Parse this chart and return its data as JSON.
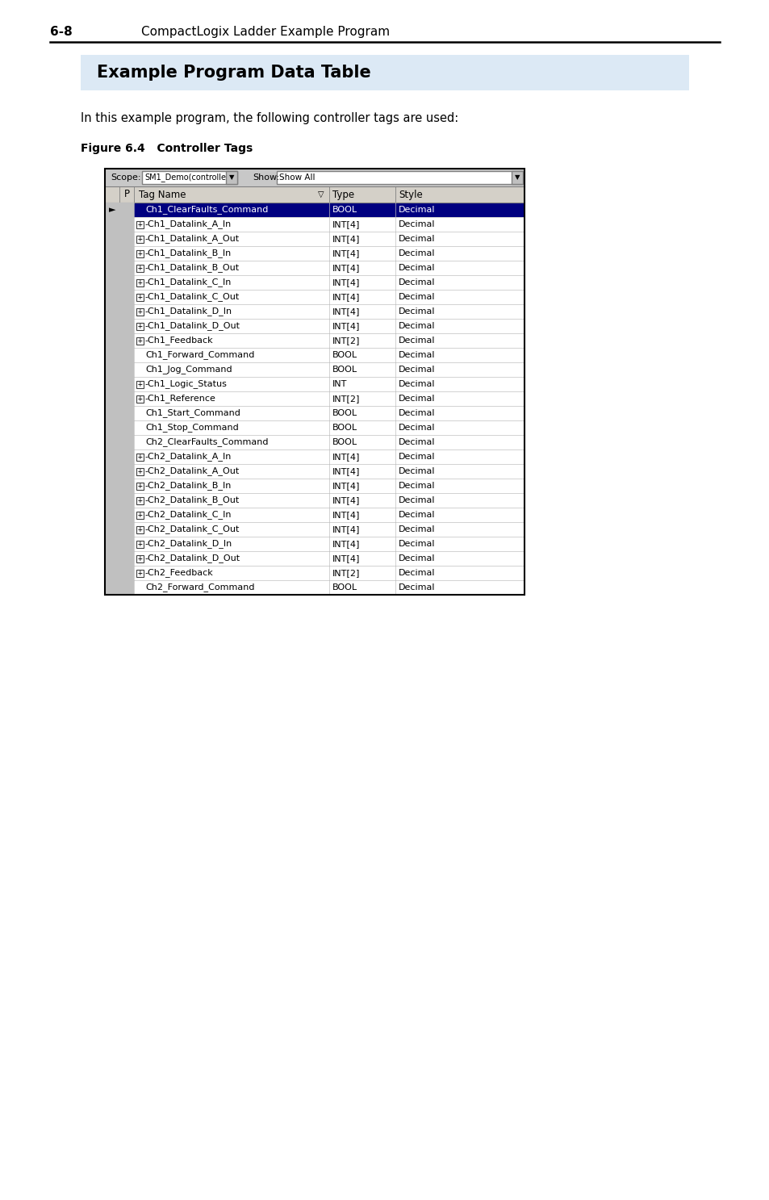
{
  "page_header_number": "6-8",
  "page_header_text": "CompactLogix Ladder Example Program",
  "section_title": "Example Program Data Table",
  "section_title_bg": "#dce9f5",
  "body_text": "In this example program, the following controller tags are used:",
  "figure_label": "Figure 6.4   Controller Tags",
  "scope_label": "Scope:",
  "scope_value": "SM1_Demo(controlle",
  "show_label": "Show:",
  "show_value": "Show All",
  "rows": [
    {
      "name": "Ch1_ClearFaults_Command",
      "type": "BOOL",
      "style": "Decimal",
      "has_plus": false,
      "selected": true
    },
    {
      "name": "Ch1_Datalink_A_In",
      "type": "INT[4]",
      "style": "Decimal",
      "has_plus": true,
      "selected": false
    },
    {
      "name": "Ch1_Datalink_A_Out",
      "type": "INT[4]",
      "style": "Decimal",
      "has_plus": true,
      "selected": false
    },
    {
      "name": "Ch1_Datalink_B_In",
      "type": "INT[4]",
      "style": "Decimal",
      "has_plus": true,
      "selected": false
    },
    {
      "name": "Ch1_Datalink_B_Out",
      "type": "INT[4]",
      "style": "Decimal",
      "has_plus": true,
      "selected": false
    },
    {
      "name": "Ch1_Datalink_C_In",
      "type": "INT[4]",
      "style": "Decimal",
      "has_plus": true,
      "selected": false
    },
    {
      "name": "Ch1_Datalink_C_Out",
      "type": "INT[4]",
      "style": "Decimal",
      "has_plus": true,
      "selected": false
    },
    {
      "name": "Ch1_Datalink_D_In",
      "type": "INT[4]",
      "style": "Decimal",
      "has_plus": true,
      "selected": false
    },
    {
      "name": "Ch1_Datalink_D_Out",
      "type": "INT[4]",
      "style": "Decimal",
      "has_plus": true,
      "selected": false
    },
    {
      "name": "Ch1_Feedback",
      "type": "INT[2]",
      "style": "Decimal",
      "has_plus": true,
      "selected": false
    },
    {
      "name": "Ch1_Forward_Command",
      "type": "BOOL",
      "style": "Decimal",
      "has_plus": false,
      "selected": false
    },
    {
      "name": "Ch1_Jog_Command",
      "type": "BOOL",
      "style": "Decimal",
      "has_plus": false,
      "selected": false
    },
    {
      "name": "Ch1_Logic_Status",
      "type": "INT",
      "style": "Decimal",
      "has_plus": true,
      "selected": false
    },
    {
      "name": "Ch1_Reference",
      "type": "INT[2]",
      "style": "Decimal",
      "has_plus": true,
      "selected": false
    },
    {
      "name": "Ch1_Start_Command",
      "type": "BOOL",
      "style": "Decimal",
      "has_plus": false,
      "selected": false
    },
    {
      "name": "Ch1_Stop_Command",
      "type": "BOOL",
      "style": "Decimal",
      "has_plus": false,
      "selected": false
    },
    {
      "name": "Ch2_ClearFaults_Command",
      "type": "BOOL",
      "style": "Decimal",
      "has_plus": false,
      "selected": false
    },
    {
      "name": "Ch2_Datalink_A_In",
      "type": "INT[4]",
      "style": "Decimal",
      "has_plus": true,
      "selected": false
    },
    {
      "name": "Ch2_Datalink_A_Out",
      "type": "INT[4]",
      "style": "Decimal",
      "has_plus": true,
      "selected": false
    },
    {
      "name": "Ch2_Datalink_B_In",
      "type": "INT[4]",
      "style": "Decimal",
      "has_plus": true,
      "selected": false
    },
    {
      "name": "Ch2_Datalink_B_Out",
      "type": "INT[4]",
      "style": "Decimal",
      "has_plus": true,
      "selected": false
    },
    {
      "name": "Ch2_Datalink_C_In",
      "type": "INT[4]",
      "style": "Decimal",
      "has_plus": true,
      "selected": false
    },
    {
      "name": "Ch2_Datalink_C_Out",
      "type": "INT[4]",
      "style": "Decimal",
      "has_plus": true,
      "selected": false
    },
    {
      "name": "Ch2_Datalink_D_In",
      "type": "INT[4]",
      "style": "Decimal",
      "has_plus": true,
      "selected": false
    },
    {
      "name": "Ch2_Datalink_D_Out",
      "type": "INT[4]",
      "style": "Decimal",
      "has_plus": true,
      "selected": false
    },
    {
      "name": "Ch2_Feedback",
      "type": "INT[2]",
      "style": "Decimal",
      "has_plus": true,
      "selected": false
    },
    {
      "name": "Ch2_Forward_Command",
      "type": "BOOL",
      "style": "Decimal",
      "has_plus": false,
      "selected": false
    }
  ],
  "bg_color": "#ffffff",
  "section_title_color": "#000000",
  "header_bg": "#d4d0c8",
  "scope_bar_bg": "#c8c8c8",
  "cell_gray": "#c0c0c0",
  "selected_row_bg": "#000080",
  "selected_row_fg": "#ffffff",
  "row_bg": "#ffffff",
  "row_fg": "#000000",
  "grid_color": "#c0c0c0",
  "outer_border": "#000000"
}
